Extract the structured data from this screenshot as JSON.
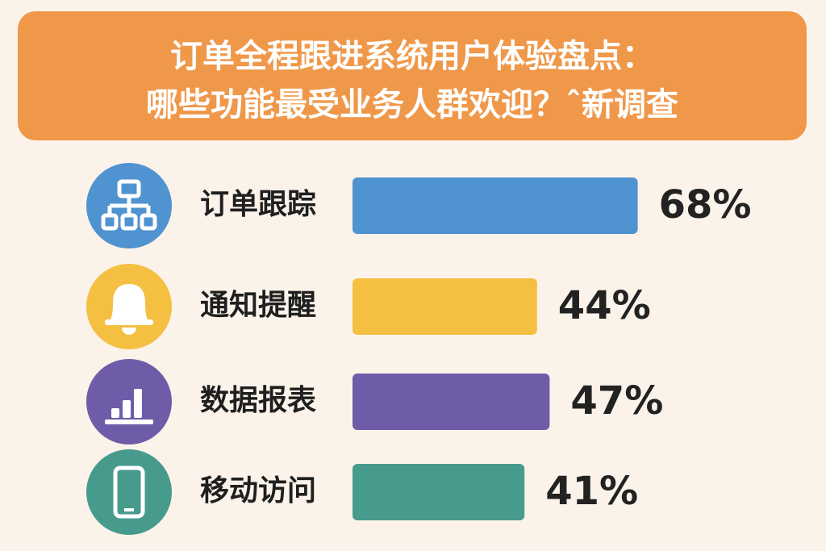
{
  "chart_data": {
    "type": "bar",
    "orientation": "horizontal",
    "title": "订单全程跟进系统用户体验盘点：",
    "subtitle": "哪些功能最受业务人群欢迎？ˆ新调查",
    "categories": [
      "订单跟踪",
      "通知提醒",
      "数据报表",
      "移动访问"
    ],
    "values": [
      68,
      44,
      47,
      41
    ],
    "value_labels": [
      "68%",
      "44%",
      "47%",
      "41%"
    ],
    "colors": [
      "#4f93d0",
      "#f5bf42",
      "#6e5ca8",
      "#479b8c"
    ]
  }
}
